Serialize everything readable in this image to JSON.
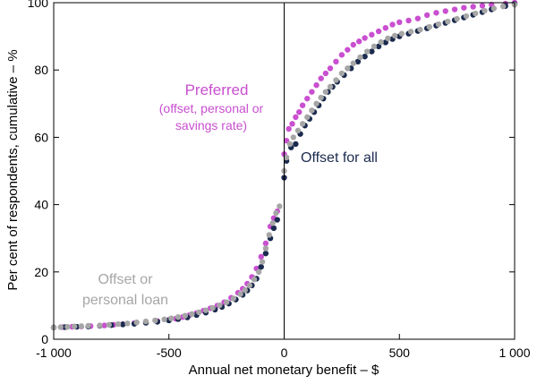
{
  "chart_data": {
    "type": "scatter",
    "xlabel": "Annual net monetary benefit – $",
    "ylabel": "Per cent of respondents, cumulative – %",
    "xlim": [
      -1000,
      1000
    ],
    "ylim": [
      0,
      100
    ],
    "x_ticks": [
      -1000,
      -500,
      0,
      500,
      1000
    ],
    "x_tick_labels": [
      "-1 000",
      "-500",
      "0",
      "500",
      "1 000"
    ],
    "y_ticks": [
      0,
      20,
      40,
      60,
      80,
      100
    ],
    "y_tick_labels": [
      "0",
      "20",
      "40",
      "60",
      "80",
      "100"
    ],
    "grid": false,
    "series": [
      {
        "key": "preferred",
        "color": "#c94fd0",
        "label_lines": [
          "Preferred",
          "(offset, personal or",
          "savings rate)"
        ],
        "points": [
          [
            -1000,
            3.5
          ],
          [
            -960,
            3.6
          ],
          [
            -920,
            3.7
          ],
          [
            -880,
            3.8
          ],
          [
            -840,
            3.9
          ],
          [
            -780,
            4.1
          ],
          [
            -740,
            4.3
          ],
          [
            -700,
            4.5
          ],
          [
            -650,
            4.8
          ],
          [
            -600,
            5.1
          ],
          [
            -550,
            5.4
          ],
          [
            -500,
            5.8
          ],
          [
            -470,
            6.1
          ],
          [
            -440,
            6.6
          ],
          [
            -410,
            7.2
          ],
          [
            -380,
            7.8
          ],
          [
            -350,
            8.5
          ],
          [
            -320,
            9.2
          ],
          [
            -290,
            10
          ],
          [
            -260,
            11
          ],
          [
            -230,
            12.3
          ],
          [
            -200,
            13.8
          ],
          [
            -180,
            15
          ],
          [
            -160,
            16.5
          ],
          [
            -140,
            18.5
          ],
          [
            -120,
            21
          ],
          [
            -100,
            24.5
          ],
          [
            -80,
            28.5
          ],
          [
            -60,
            33.5
          ],
          [
            -45,
            36
          ],
          [
            -30,
            38
          ],
          [
            0,
            55
          ],
          [
            10,
            59
          ],
          [
            20,
            62.5
          ],
          [
            35,
            64
          ],
          [
            50,
            66
          ],
          [
            65,
            67.5
          ],
          [
            80,
            69.5
          ],
          [
            100,
            71.5
          ],
          [
            120,
            73.5
          ],
          [
            140,
            75.5
          ],
          [
            160,
            77.5
          ],
          [
            180,
            79
          ],
          [
            200,
            80.5
          ],
          [
            225,
            82.5
          ],
          [
            250,
            84.5
          ],
          [
            275,
            86
          ],
          [
            300,
            87.5
          ],
          [
            325,
            88.5
          ],
          [
            350,
            89.5
          ],
          [
            380,
            90.5
          ],
          [
            410,
            91.5
          ],
          [
            440,
            92.5
          ],
          [
            470,
            93.5
          ],
          [
            500,
            94.2
          ],
          [
            540,
            94.7
          ],
          [
            580,
            95.3
          ],
          [
            620,
            96.3
          ],
          [
            660,
            97
          ],
          [
            700,
            97.5
          ],
          [
            740,
            98
          ],
          [
            780,
            98.5
          ],
          [
            820,
            98.8
          ],
          [
            860,
            99.1
          ],
          [
            900,
            99.4
          ],
          [
            960,
            99.7
          ],
          [
            1000,
            100
          ]
        ]
      },
      {
        "key": "offset-for-all",
        "color": "#1b2a4e",
        "label_lines": [
          "Offset for all"
        ],
        "points": [
          [
            -1000,
            3.5
          ],
          [
            -950,
            3.6
          ],
          [
            -900,
            3.7
          ],
          [
            -850,
            3.8
          ],
          [
            -800,
            4
          ],
          [
            -750,
            4.2
          ],
          [
            -700,
            4.4
          ],
          [
            -650,
            4.6
          ],
          [
            -600,
            4.9
          ],
          [
            -550,
            5.2
          ],
          [
            -500,
            5.6
          ],
          [
            -460,
            6
          ],
          [
            -420,
            6.5
          ],
          [
            -380,
            7.2
          ],
          [
            -340,
            7.9
          ],
          [
            -300,
            8.8
          ],
          [
            -270,
            9.6
          ],
          [
            -240,
            10.6
          ],
          [
            -210,
            11.8
          ],
          [
            -180,
            13.2
          ],
          [
            -160,
            14.5
          ],
          [
            -140,
            16
          ],
          [
            -120,
            18
          ],
          [
            -100,
            21.5
          ],
          [
            -80,
            25.5
          ],
          [
            -60,
            30
          ],
          [
            -45,
            33
          ],
          [
            -30,
            35.5
          ],
          [
            0,
            48
          ],
          [
            10,
            53
          ],
          [
            30,
            57
          ],
          [
            50,
            58
          ],
          [
            70,
            61
          ],
          [
            90,
            63.5
          ],
          [
            110,
            65.5
          ],
          [
            130,
            67.5
          ],
          [
            150,
            69.5
          ],
          [
            170,
            71.5
          ],
          [
            190,
            73.5
          ],
          [
            210,
            75
          ],
          [
            230,
            76.5
          ],
          [
            260,
            78.5
          ],
          [
            290,
            80.5
          ],
          [
            320,
            82.5
          ],
          [
            350,
            84
          ],
          [
            380,
            85.5
          ],
          [
            410,
            87
          ],
          [
            440,
            88.2
          ],
          [
            470,
            89.2
          ],
          [
            500,
            90
          ],
          [
            540,
            90.8
          ],
          [
            580,
            91.6
          ],
          [
            620,
            92.4
          ],
          [
            660,
            93.2
          ],
          [
            700,
            94
          ],
          [
            740,
            94.8
          ],
          [
            780,
            95.6
          ],
          [
            820,
            96.4
          ],
          [
            860,
            97.2
          ],
          [
            900,
            98
          ],
          [
            960,
            99
          ],
          [
            1000,
            99.6
          ]
        ]
      },
      {
        "key": "offset-or-personal-loan",
        "color": "#a6a6a6",
        "label_lines": [
          "Offset or",
          "personal loan"
        ],
        "points": [
          [
            -1000,
            3.5
          ],
          [
            -970,
            3.6
          ],
          [
            -940,
            3.7
          ],
          [
            -910,
            3.8
          ],
          [
            -880,
            3.9
          ],
          [
            -850,
            4
          ],
          [
            -800,
            4.1
          ],
          [
            -760,
            4.3
          ],
          [
            -720,
            4.5
          ],
          [
            -680,
            4.7
          ],
          [
            -640,
            5
          ],
          [
            -600,
            5.3
          ],
          [
            -560,
            5.6
          ],
          [
            -520,
            5.9
          ],
          [
            -490,
            6.2
          ],
          [
            -460,
            6.6
          ],
          [
            -430,
            7
          ],
          [
            -400,
            7.5
          ],
          [
            -370,
            8
          ],
          [
            -340,
            8.6
          ],
          [
            -310,
            9.3
          ],
          [
            -280,
            10.1
          ],
          [
            -250,
            11
          ],
          [
            -220,
            12.1
          ],
          [
            -190,
            13.4
          ],
          [
            -170,
            14.6
          ],
          [
            -150,
            16
          ],
          [
            -130,
            17.8
          ],
          [
            -110,
            20
          ],
          [
            -95,
            23
          ],
          [
            -80,
            27
          ],
          [
            -65,
            31
          ],
          [
            -50,
            34.5
          ],
          [
            -35,
            37.5
          ],
          [
            -20,
            39.5
          ],
          [
            0,
            50
          ],
          [
            10,
            54
          ],
          [
            25,
            58
          ],
          [
            40,
            60
          ],
          [
            60,
            62
          ],
          [
            80,
            64
          ],
          [
            100,
            66
          ],
          [
            120,
            68
          ],
          [
            140,
            70
          ],
          [
            160,
            71.8
          ],
          [
            180,
            73.5
          ],
          [
            200,
            75
          ],
          [
            225,
            77
          ],
          [
            250,
            79
          ],
          [
            275,
            80.5
          ],
          [
            300,
            82
          ],
          [
            330,
            83.8
          ],
          [
            360,
            85.5
          ],
          [
            390,
            87
          ],
          [
            420,
            88.3
          ],
          [
            450,
            89.4
          ],
          [
            480,
            90.2
          ],
          [
            510,
            90.8
          ],
          [
            550,
            91.4
          ],
          [
            590,
            92
          ],
          [
            630,
            92.8
          ],
          [
            670,
            93.6
          ],
          [
            710,
            94.4
          ],
          [
            750,
            95.2
          ],
          [
            790,
            96
          ],
          [
            830,
            96.8
          ],
          [
            870,
            97.6
          ],
          [
            910,
            98.3
          ],
          [
            950,
            98.9
          ],
          [
            1000,
            99.4
          ]
        ]
      }
    ]
  }
}
